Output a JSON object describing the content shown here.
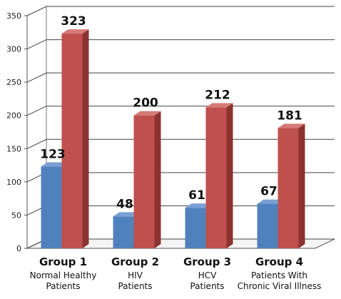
{
  "chart_data": {
    "type": "bar",
    "categories": [
      {
        "name": "Group 1",
        "sub": [
          "Normal Healthy",
          "Patients"
        ]
      },
      {
        "name": "Group 2",
        "sub": [
          "HIV",
          "Patients"
        ]
      },
      {
        "name": "Group 3",
        "sub": [
          "HCV",
          "Patients"
        ]
      },
      {
        "name": "Group 4",
        "sub": [
          "Patients With",
          "Chronic Viral Illness"
        ]
      }
    ],
    "series": [
      {
        "values": [
          123,
          48,
          61,
          67
        ],
        "color": "#4f81bd",
        "side": "#3a5f8c",
        "top": "#7a9fd4"
      },
      {
        "values": [
          323,
          200,
          212,
          181
        ],
        "color": "#c0504d",
        "side": "#8b3331",
        "top": "#d57a77"
      }
    ],
    "ylim": [
      0,
      350
    ],
    "yticks": [
      "0",
      "50",
      "100",
      "150",
      "200",
      "250",
      "300",
      "350"
    ],
    "grid": true,
    "style": "3d-column",
    "data_labels": [
      [
        "123",
        "48",
        "61",
        "67"
      ],
      [
        "323",
        "200",
        "212",
        "181"
      ]
    ]
  }
}
